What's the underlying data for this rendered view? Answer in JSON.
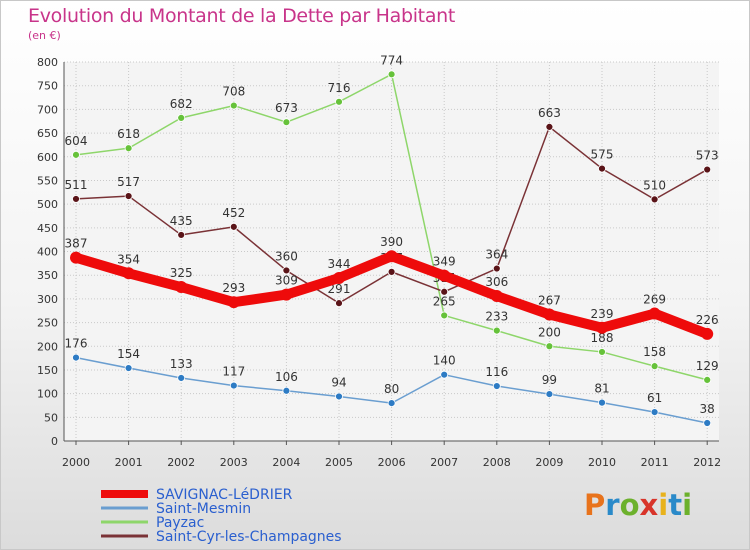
{
  "title": "Evolution du Montant de la Dette par Habitant",
  "subtitle": "(en €)",
  "logo": {
    "text": "Proxiti",
    "colors": [
      "#e8731c",
      "#2a8ac9",
      "#6cb12c",
      "#d8342a",
      "#e8b21c",
      "#2a8ac9",
      "#6cb12c"
    ]
  },
  "chart_data": {
    "type": "line",
    "title": "Evolution du Montant de la Dette par Habitant",
    "subtitle": "(en €)",
    "x": [
      "2000",
      "2001",
      "2002",
      "2003",
      "2004",
      "2005",
      "2006",
      "2007",
      "2008",
      "2009",
      "2010",
      "2011",
      "2012"
    ],
    "ylim": [
      0,
      800
    ],
    "yticks": [
      0,
      50,
      100,
      150,
      200,
      250,
      300,
      350,
      400,
      450,
      500,
      550,
      600,
      650,
      700,
      750,
      800
    ],
    "grid": true,
    "legend_position": "bottom-left",
    "series": [
      {
        "name": "Saint-Mesmin",
        "color": "#6a9ed0",
        "marker": "#2d7bc4",
        "bold": false,
        "values": [
          176,
          154,
          133,
          117,
          106,
          94,
          80,
          140,
          116,
          99,
          81,
          61,
          38
        ]
      },
      {
        "name": "Payzac",
        "color": "#8ed66a",
        "marker": "#66c23a",
        "bold": false,
        "values": [
          604,
          618,
          682,
          708,
          673,
          716,
          774,
          265,
          233,
          200,
          188,
          158,
          129
        ]
      },
      {
        "name": "Saint-Cyr-les-Champagnes",
        "color": "#7a3236",
        "marker": "#5a1418",
        "bold": false,
        "values": [
          511,
          517,
          435,
          452,
          360,
          291,
          357,
          315,
          364,
          663,
          575,
          510,
          573
        ]
      },
      {
        "name": "SAVIGNAC-LéDRIER",
        "color": "#ee0b0b",
        "marker": "#ee0b0b",
        "bold": true,
        "values": [
          387,
          354,
          325,
          293,
          309,
          344,
          390,
          349,
          306,
          267,
          239,
          269,
          226
        ]
      }
    ],
    "legend_order": [
      "SAVIGNAC-LéDRIER",
      "Saint-Mesmin",
      "Payzac",
      "Saint-Cyr-les-Champagnes"
    ]
  }
}
